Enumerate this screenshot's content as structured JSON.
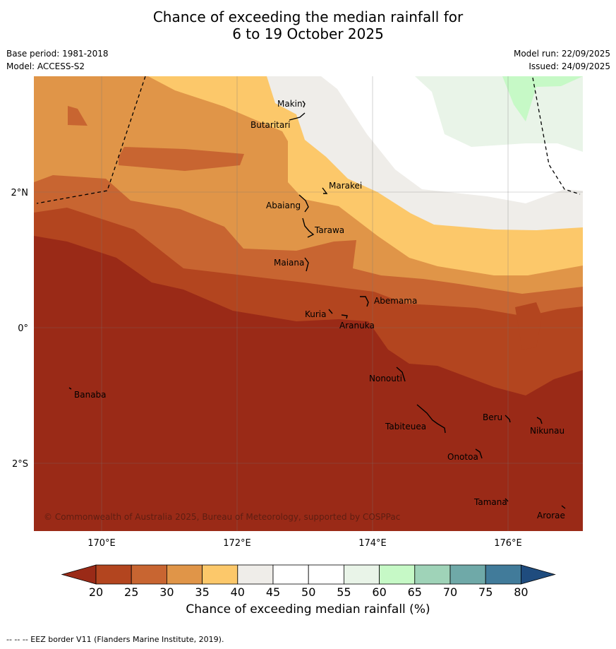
{
  "header": {
    "title_line1": "Chance of exceeding the median rainfall for",
    "title_line2": "6 to 19 October 2025",
    "base_period": "Base period: 1981-2018",
    "model": "Model: ACCESS-S2",
    "model_run": "Model run: 22/09/2025",
    "issued": "Issued: 24/09/2025"
  },
  "map": {
    "lat_labels": [
      "2°N",
      "0°",
      "2°S"
    ],
    "lon_labels": [
      "170°E",
      "172°E",
      "174°E",
      "176°E"
    ],
    "places": [
      "Makin",
      "Butaritari",
      "Marakei",
      "Abaiang",
      "Tarawa",
      "Maiana",
      "Abemama",
      "Kuria",
      "Aranuka",
      "Nonouti",
      "Banaba",
      "Tabiteuea",
      "Beru",
      "Nikunau",
      "Onotoa",
      "Tamana",
      "Arorae"
    ],
    "copyright": "© Commonwealth of Australia 2025, Bureau of Meteorology, supported by COSPPac"
  },
  "colorbar": {
    "ticks": [
      "20",
      "25",
      "30",
      "35",
      "40",
      "45",
      "50",
      "55",
      "60",
      "65",
      "70",
      "75",
      "80"
    ],
    "colors": [
      "#9a2a17",
      "#b3451f",
      "#c86531",
      "#e09548",
      "#fcc86a",
      "#efede9",
      "#ffffff",
      "#ffffff",
      "#e9f4e8",
      "#c6f9c6",
      "#9fd3b8",
      "#6fa9a8",
      "#417b9a",
      "#1f4c7e"
    ],
    "label": "Chance of exceeding median rainfall (%)"
  },
  "footer": "-- -- -- EEZ border V11 (Flanders Marine Institute, 2019)."
}
